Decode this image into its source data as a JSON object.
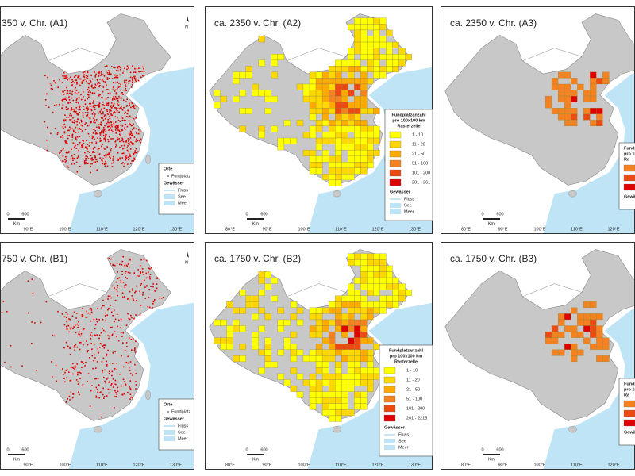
{
  "panels": [
    {
      "title": "350 v. Chr. (A1)",
      "longitudes": [
        "90°E",
        "100°E",
        "110°E",
        "120°E",
        "130°E"
      ],
      "legend": {
        "heading": [
          "Orte"
        ],
        "item": "Fundplatz",
        "water": "Gewässer",
        "water_items": [
          "Fluss",
          "See",
          "Meer"
        ]
      },
      "scale": [
        "0",
        "600",
        "Km"
      ],
      "north": "N"
    },
    {
      "title": "ca. 2350 v. Chr. (A2)",
      "longitudes": [
        "80°E",
        "90°E",
        "100°E",
        "110°E",
        "120°E",
        "130°E"
      ],
      "legend": {
        "heading": [
          "Fundplatzanzahl",
          "pro 100x100 km",
          "Rasterzelle"
        ],
        "classes": [
          {
            "label": "1 - 10",
            "color": "#ffff00"
          },
          {
            "label": "11 - 20",
            "color": "#ffd700"
          },
          {
            "label": "21 - 50",
            "color": "#ffaa00"
          },
          {
            "label": "51 - 100",
            "color": "#f58220"
          },
          {
            "label": "101 - 200",
            "color": "#ec4a12"
          },
          {
            "label": "201 - 261",
            "color": "#e00000"
          }
        ],
        "water": "Gewässer",
        "water_items": [
          "Fluss",
          "See",
          "Meer"
        ]
      },
      "scale": [
        "0",
        "600",
        "Km"
      ]
    },
    {
      "title": "ca. 2350 v. Chr. (A3)",
      "longitudes": [
        "80°E",
        "90°E",
        "100°E",
        "110°E",
        "120°E"
      ],
      "legend": {
        "heading": [
          "Fundpl",
          "pro 10",
          "Ra"
        ],
        "classes": [
          {
            "color": "#f58220"
          },
          {
            "color": "#ec4a12"
          },
          {
            "color": "#e00000"
          }
        ],
        "water": "Gewä"
      },
      "scale": [
        "0",
        "600",
        "Km"
      ]
    },
    {
      "title": "750 v. Chr. (B1)",
      "longitudes": [
        "90°E",
        "100°E",
        "110°E",
        "120°E",
        "130°E"
      ],
      "legend": {
        "heading": [
          "Orte"
        ],
        "item": "Fundplatz",
        "water": "Gewässer",
        "water_items": [
          "Fluss",
          "See",
          "Meer"
        ]
      },
      "scale": [
        "0",
        "600",
        "Km"
      ],
      "north": "N"
    },
    {
      "title": "ca. 1750 v. Chr. (B2)",
      "longitudes": [
        "80°E",
        "90°E",
        "100°E",
        "110°E",
        "120°E",
        "130°E"
      ],
      "legend": {
        "heading": [
          "Fundplatzanzahl",
          "pro 100x100 km",
          "Rasterzelle"
        ],
        "classes": [
          {
            "label": "1 - 10",
            "color": "#ffff00"
          },
          {
            "label": "11 - 20",
            "color": "#ffd700"
          },
          {
            "label": "21 - 50",
            "color": "#ffaa00"
          },
          {
            "label": "51 - 100",
            "color": "#f58220"
          },
          {
            "label": "101 - 200",
            "color": "#ec4a12"
          },
          {
            "label": "201 - 2213",
            "color": "#e00000"
          }
        ],
        "water": "Gewässer",
        "water_items": [
          "Fluss",
          "See",
          "Meer"
        ]
      },
      "scale": [
        "0",
        "600",
        "Km"
      ]
    },
    {
      "title": "ca. 1750 v. Chr. (B3)",
      "longitudes": [
        "80°E",
        "90°E",
        "100°E",
        "110°E",
        "120°E"
      ],
      "legend": {
        "heading": [
          "Fundpl",
          "pro 10",
          "Ra"
        ],
        "classes": [
          {
            "color": "#f58220"
          },
          {
            "color": "#ec4a12"
          },
          {
            "color": "#e00000"
          }
        ],
        "water": "Gewä"
      },
      "scale": [
        "0",
        "600",
        "Km"
      ]
    }
  ]
}
